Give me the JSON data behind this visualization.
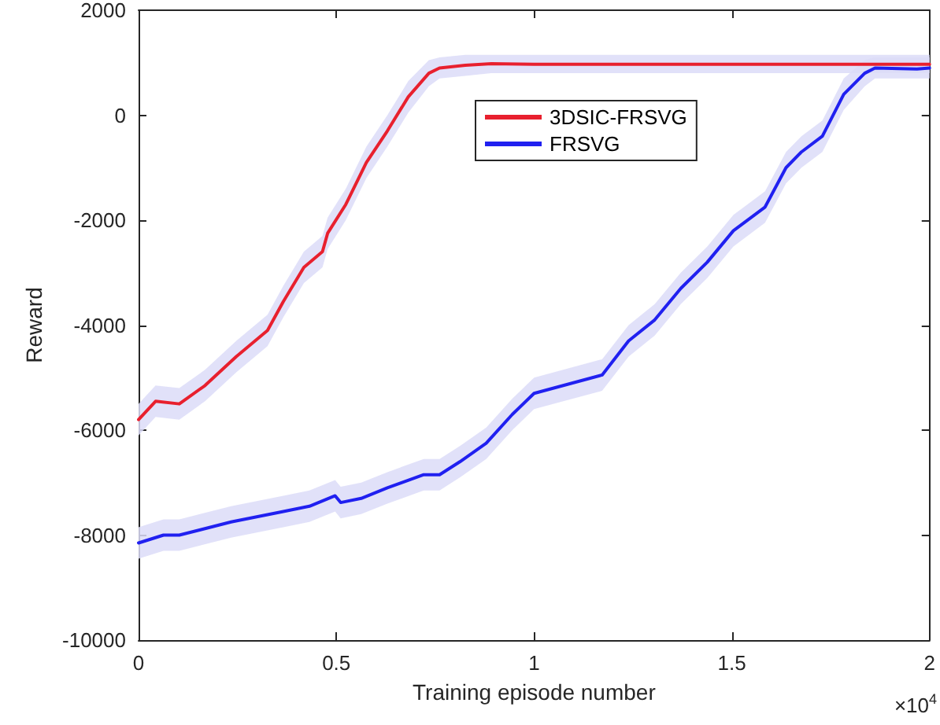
{
  "chart_data": {
    "type": "line",
    "xlabel": "Training episode number",
    "ylabel": "Reward",
    "xlim": [
      0,
      2
    ],
    "ylim": [
      -10000,
      2000
    ],
    "xticks": [
      0,
      0.5,
      1,
      1.5,
      2
    ],
    "yticks": [
      -10000,
      -8000,
      -6000,
      -4000,
      -2000,
      0,
      2000
    ],
    "annotations": [
      "×10$^{4}$"
    ],
    "grid": false,
    "legend": "top",
    "marker": "none",
    "line_style": "solid",
    "series": [
      {
        "name": "3DSIC-FRSVG",
        "color": "#e8202e",
        "x": [
          0,
          0.043,
          0.103,
          0.168,
          0.247,
          0.326,
          0.366,
          0.418,
          0.465,
          0.478,
          0.524,
          0.576,
          0.629,
          0.682,
          0.734,
          0.761,
          0.826,
          0.892,
          1.0,
          1.5,
          2.0
        ],
        "values": [
          -5800,
          -5450,
          -5500,
          -5150,
          -4600,
          -4100,
          -3550,
          -2900,
          -2600,
          -2250,
          -1700,
          -900,
          -300,
          350,
          800,
          900,
          950,
          980,
          970,
          970,
          970
        ],
        "lower": [
          -6100,
          -5750,
          -5800,
          -5450,
          -4900,
          -4400,
          -3850,
          -3200,
          -2900,
          -2550,
          -2000,
          -1200,
          -600,
          50,
          550,
          700,
          750,
          800,
          800,
          800,
          800
        ],
        "upper": [
          -5500,
          -5150,
          -5200,
          -4850,
          -4300,
          -3800,
          -3250,
          -2600,
          -2300,
          -1950,
          -1400,
          -600,
          0,
          650,
          1050,
          1100,
          1150,
          1150,
          1150,
          1150,
          1150
        ]
      },
      {
        "name": "FRSVG",
        "color": "#2020f0",
        "x": [
          0,
          0.063,
          0.103,
          0.234,
          0.366,
          0.432,
          0.497,
          0.511,
          0.563,
          0.629,
          0.721,
          0.761,
          0.813,
          0.879,
          0.945,
          1.0,
          1.172,
          1.239,
          1.305,
          1.371,
          1.438,
          1.504,
          1.584,
          1.637,
          1.676,
          1.729,
          1.783,
          1.836,
          1.862,
          1.968,
          2.0
        ],
        "values": [
          -8150,
          -8000,
          -8000,
          -7750,
          -7550,
          -7450,
          -7250,
          -7380,
          -7300,
          -7100,
          -6850,
          -6850,
          -6600,
          -6250,
          -5700,
          -5300,
          -4950,
          -4300,
          -3900,
          -3300,
          -2800,
          -2200,
          -1750,
          -1000,
          -700,
          -400,
          400,
          800,
          900,
          880,
          900
        ],
        "lower": [
          -8450,
          -8300,
          -8300,
          -8050,
          -7850,
          -7750,
          -7550,
          -7680,
          -7600,
          -7400,
          -7150,
          -7150,
          -6900,
          -6550,
          -6000,
          -5600,
          -5250,
          -4600,
          -4200,
          -3600,
          -3100,
          -2500,
          -2050,
          -1300,
          -1000,
          -700,
          100,
          550,
          700,
          700,
          700
        ],
        "upper": [
          -7850,
          -7700,
          -7700,
          -7450,
          -7250,
          -7150,
          -6950,
          -7080,
          -7000,
          -6800,
          -6550,
          -6550,
          -6300,
          -5950,
          -5400,
          -5000,
          -4650,
          -4000,
          -3600,
          -3000,
          -2500,
          -1900,
          -1450,
          -700,
          -400,
          -100,
          700,
          1050,
          1100,
          1100,
          1100
        ]
      }
    ]
  }
}
